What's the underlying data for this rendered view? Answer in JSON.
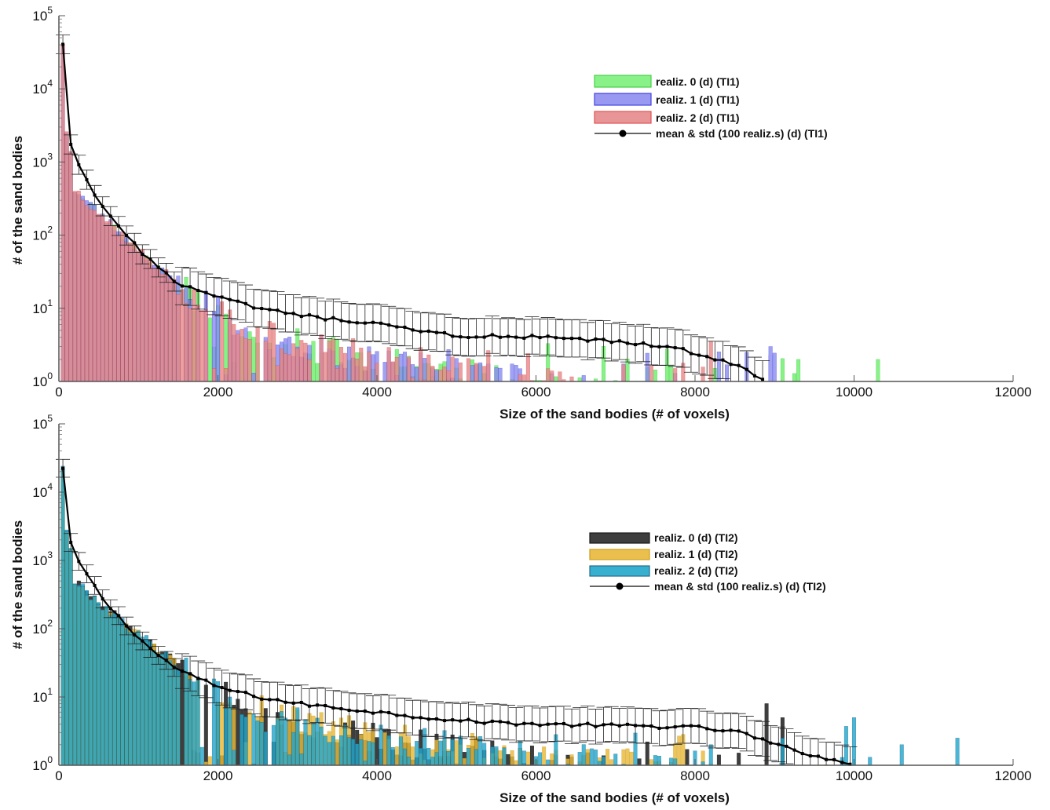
{
  "chart_data": [
    {
      "type": "bar",
      "scale": "log-y",
      "title": "",
      "xlabel": "Size of the sand bodies (# of voxels)",
      "ylabel": "# of the sand bodies",
      "xlim": [
        0,
        12000
      ],
      "ylim": [
        1,
        100000
      ],
      "bin_width": 50,
      "x_ticks": [
        "0",
        "2000",
        "4000",
        "6000",
        "8000",
        "10000",
        "12000"
      ],
      "y_ticks": [
        {
          "base": "10",
          "exp": "0"
        },
        {
          "base": "10",
          "exp": "1"
        },
        {
          "base": "10",
          "exp": "2"
        },
        {
          "base": "10",
          "exp": "3"
        },
        {
          "base": "10",
          "exp": "4"
        },
        {
          "base": "10",
          "exp": "5"
        }
      ],
      "legend_position": "upper-right",
      "series": [
        {
          "name": "realiz. 0 (d) (TI1)",
          "color": "#7CF07C",
          "border": "#33cc33",
          "head": [
            {
              "x": 50,
              "y": 40000
            },
            {
              "x": 100,
              "y": 2400
            },
            {
              "x": 150,
              "y": 1300
            }
          ],
          "decay": {
            "a": 680,
            "k": 0.0025,
            "b": 9,
            "m": 0.00038
          },
          "tail_end": 9400,
          "extra": [
            {
              "x": 10300,
              "y": 2
            },
            {
              "x": 9300,
              "y": 2
            }
          ],
          "seed": 11
        },
        {
          "name": "realiz. 1 (d) (TI1)",
          "color": "#8E8EF0",
          "border": "#3030e0",
          "head": [
            {
              "x": 50,
              "y": 38000
            },
            {
              "x": 100,
              "y": 2500
            },
            {
              "x": 150,
              "y": 1350
            }
          ],
          "decay": {
            "a": 690,
            "k": 0.0025,
            "b": 8.5,
            "m": 0.00036
          },
          "tail_end": 9000,
          "extra": [
            {
              "x": 8950,
              "y": 3
            },
            {
              "x": 8650,
              "y": 2.5
            }
          ],
          "seed": 23
        },
        {
          "name": "realiz. 2 (d) (TI1)",
          "color": "#E68A8C",
          "border": "#e04040",
          "head": [
            {
              "x": 50,
              "y": 41000
            },
            {
              "x": 100,
              "y": 2600
            },
            {
              "x": 150,
              "y": 1400
            }
          ],
          "decay": {
            "a": 700,
            "k": 0.0025,
            "b": 9,
            "m": 0.00037
          },
          "tail_end": 8400,
          "extra": [
            {
              "x": 8200,
              "y": 3.5
            }
          ],
          "seed": 37
        }
      ],
      "mean_std": {
        "name": "mean & std (100 realiz.s) (d) (TI1)",
        "color": "#000000",
        "x_end": 8900,
        "points": [
          {
            "x": 50,
            "y": 40000
          },
          {
            "x": 100,
            "y": 2500
          },
          {
            "x": 200,
            "y": 1100
          },
          {
            "x": 400,
            "y": 450
          },
          {
            "x": 600,
            "y": 200
          },
          {
            "x": 800,
            "y": 110
          },
          {
            "x": 1000,
            "y": 65
          },
          {
            "x": 1200,
            "y": 40
          },
          {
            "x": 1500,
            "y": 22
          },
          {
            "x": 2000,
            "y": 14
          },
          {
            "x": 2500,
            "y": 10
          },
          {
            "x": 3000,
            "y": 8
          },
          {
            "x": 4000,
            "y": 6
          },
          {
            "x": 5000,
            "y": 4.2
          },
          {
            "x": 6000,
            "y": 4
          },
          {
            "x": 7000,
            "y": 3.5
          },
          {
            "x": 7800,
            "y": 2.8
          },
          {
            "x": 8300,
            "y": 2
          },
          {
            "x": 8600,
            "y": 1.5
          },
          {
            "x": 8800,
            "y": 1.1
          }
        ]
      }
    },
    {
      "type": "bar",
      "scale": "log-y",
      "title": "",
      "xlabel": "Size of the sand bodies (# of voxels)",
      "ylabel": "# of the sand bodies",
      "xlim": [
        0,
        12000
      ],
      "ylim": [
        1,
        100000
      ],
      "bin_width": 50,
      "x_ticks": [
        "0",
        "2000",
        "4000",
        "6000",
        "8000",
        "10000",
        "12000"
      ],
      "y_ticks": [
        {
          "base": "10",
          "exp": "0"
        },
        {
          "base": "10",
          "exp": "1"
        },
        {
          "base": "10",
          "exp": "2"
        },
        {
          "base": "10",
          "exp": "3"
        },
        {
          "base": "10",
          "exp": "4"
        },
        {
          "base": "10",
          "exp": "5"
        }
      ],
      "legend_position": "right",
      "series": [
        {
          "name": "realiz. 0 (d) (TI2)",
          "color": "#2A2A2A",
          "border": "#000000",
          "head": [
            {
              "x": 50,
              "y": 22000
            },
            {
              "x": 100,
              "y": 2700
            },
            {
              "x": 150,
              "y": 1500
            }
          ],
          "decay": {
            "a": 760,
            "k": 0.0023,
            "b": 9,
            "m": 0.00033
          },
          "tail_end": 9800,
          "extra": [
            {
              "x": 8900,
              "y": 8
            },
            {
              "x": 9100,
              "y": 5
            }
          ],
          "seed": 51
        },
        {
          "name": "realiz. 1 (d) (TI2)",
          "color": "#E8B93A",
          "border": "#c89400",
          "head": [
            {
              "x": 50,
              "y": 20000
            },
            {
              "x": 100,
              "y": 2600
            },
            {
              "x": 150,
              "y": 1450
            }
          ],
          "decay": {
            "a": 740,
            "k": 0.0023,
            "b": 10,
            "m": 0.00032
          },
          "tail_end": 9700,
          "extra": [],
          "seed": 67
        },
        {
          "name": "realiz. 2 (d) (TI2)",
          "color": "#22A8CC",
          "border": "#0b5f80",
          "head": [
            {
              "x": 50,
              "y": 24000
            },
            {
              "x": 100,
              "y": 2800
            },
            {
              "x": 150,
              "y": 1500
            }
          ],
          "decay": {
            "a": 770,
            "k": 0.0023,
            "b": 9,
            "m": 0.00031
          },
          "tail_end": 10500,
          "extra": [
            {
              "x": 11300,
              "y": 2.5
            },
            {
              "x": 10600,
              "y": 2
            },
            {
              "x": 10000,
              "y": 5
            }
          ],
          "seed": 79
        }
      ],
      "mean_std": {
        "name": "mean & std (100 realiz.s) (d) (TI2)",
        "color": "#000000",
        "x_end": 9950,
        "points": [
          {
            "x": 50,
            "y": 22000
          },
          {
            "x": 100,
            "y": 2500
          },
          {
            "x": 200,
            "y": 1200
          },
          {
            "x": 400,
            "y": 500
          },
          {
            "x": 600,
            "y": 230
          },
          {
            "x": 800,
            "y": 130
          },
          {
            "x": 1000,
            "y": 75
          },
          {
            "x": 1200,
            "y": 45
          },
          {
            "x": 1500,
            "y": 25
          },
          {
            "x": 2000,
            "y": 14
          },
          {
            "x": 2500,
            "y": 10
          },
          {
            "x": 3000,
            "y": 8
          },
          {
            "x": 4000,
            "y": 6
          },
          {
            "x": 5000,
            "y": 4.5
          },
          {
            "x": 6000,
            "y": 4
          },
          {
            "x": 7000,
            "y": 3.8
          },
          {
            "x": 8000,
            "y": 3.6
          },
          {
            "x": 8600,
            "y": 3
          },
          {
            "x": 9000,
            "y": 2
          },
          {
            "x": 9500,
            "y": 1.4
          },
          {
            "x": 9900,
            "y": 1.05
          }
        ]
      }
    }
  ]
}
